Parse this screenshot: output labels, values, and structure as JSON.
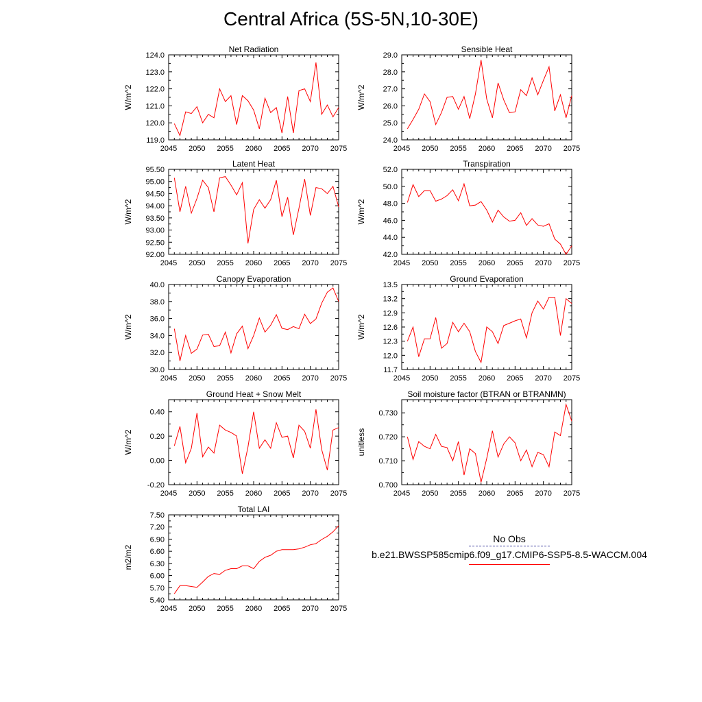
{
  "title": "Central Africa (5S-5N,10-30E)",
  "legend": {
    "obs_label": "No Obs",
    "obs_color": "#3c3c9c",
    "case_label": "b.e21.BWSSP585cmip6.f09_g17.CMIP6-SSP5-8.5-WACCM.004",
    "case_color": "#ff0000"
  },
  "chart_data": [
    {
      "type": "line",
      "title": "Net Radiation",
      "ylabel": "W/m^2",
      "xlim": [
        2045,
        2075
      ],
      "ylim": [
        119.0,
        124.0
      ],
      "xticks": [
        "2045",
        "2050",
        "2055",
        "2060",
        "2065",
        "2070",
        "2075"
      ],
      "yticks": [
        "119.0",
        "120.0",
        "121.0",
        "122.0",
        "123.0",
        "124.0"
      ],
      "x_start": 2046,
      "values": [
        119.95,
        119.25,
        120.65,
        120.55,
        120.95,
        120.0,
        120.5,
        120.3,
        122.0,
        121.25,
        121.6,
        119.9,
        121.6,
        121.3,
        120.75,
        119.65,
        121.45,
        120.6,
        120.9,
        119.4,
        121.55,
        119.4,
        121.9,
        122.0,
        121.25,
        123.55,
        120.5,
        121.05,
        120.35,
        120.9
      ]
    },
    {
      "type": "line",
      "title": "Sensible Heat",
      "ylabel": "W/m^2",
      "xlim": [
        2045,
        2075
      ],
      "ylim": [
        24.0,
        29.0
      ],
      "xticks": [
        "2045",
        "2050",
        "2055",
        "2060",
        "2065",
        "2070",
        "2075"
      ],
      "yticks": [
        "24.0",
        "25.0",
        "26.0",
        "27.0",
        "28.0",
        "29.0"
      ],
      "x_start": 2046,
      "values": [
        24.65,
        25.2,
        25.8,
        26.7,
        26.25,
        24.9,
        25.6,
        26.5,
        26.55,
        25.8,
        26.55,
        25.25,
        26.7,
        28.7,
        26.4,
        25.3,
        27.35,
        26.35,
        25.6,
        25.65,
        26.95,
        26.6,
        27.65,
        26.65,
        27.5,
        28.3,
        25.7,
        26.65,
        25.3,
        26.6
      ]
    },
    {
      "type": "line",
      "title": "Latent Heat",
      "ylabel": "W/m^2",
      "xlim": [
        2045,
        2075
      ],
      "ylim": [
        92.0,
        95.5
      ],
      "xticks": [
        "2045",
        "2050",
        "2055",
        "2060",
        "2065",
        "2070",
        "2075"
      ],
      "yticks": [
        "92.00",
        "92.50",
        "93.00",
        "93.50",
        "94.00",
        "94.50",
        "95.00",
        "95.50"
      ],
      "x_start": 2046,
      "values": [
        95.15,
        93.75,
        94.8,
        93.7,
        94.3,
        95.05,
        94.75,
        93.75,
        95.15,
        95.2,
        94.85,
        94.45,
        94.95,
        92.45,
        93.85,
        94.25,
        93.9,
        94.25,
        95.05,
        93.55,
        94.35,
        92.8,
        93.9,
        95.1,
        93.6,
        94.75,
        94.7,
        94.5,
        94.8,
        93.95
      ]
    },
    {
      "type": "line",
      "title": "Transpiration",
      "ylabel": "W/m^2",
      "xlim": [
        2045,
        2075
      ],
      "ylim": [
        42.0,
        52.0
      ],
      "xticks": [
        "2045",
        "2050",
        "2055",
        "2060",
        "2065",
        "2070",
        "2075"
      ],
      "yticks": [
        "42.0",
        "44.0",
        "46.0",
        "48.0",
        "50.0",
        "52.0"
      ],
      "x_start": 2046,
      "values": [
        48.1,
        50.2,
        48.8,
        49.5,
        49.5,
        48.25,
        48.5,
        48.9,
        49.6,
        48.3,
        50.3,
        47.7,
        47.8,
        48.2,
        47.2,
        45.8,
        47.2,
        46.4,
        45.9,
        46.0,
        46.9,
        45.4,
        46.2,
        45.45,
        45.3,
        45.6,
        43.8,
        43.2,
        41.95,
        43.0
      ]
    },
    {
      "type": "line",
      "title": "Canopy Evaporation",
      "ylabel": "W/m^2",
      "xlim": [
        2045,
        2075
      ],
      "ylim": [
        30.0,
        40.0
      ],
      "xticks": [
        "2045",
        "2050",
        "2055",
        "2060",
        "2065",
        "2070",
        "2075"
      ],
      "yticks": [
        "30.0",
        "32.0",
        "34.0",
        "36.0",
        "38.0",
        "40.0"
      ],
      "x_start": 2046,
      "values": [
        34.8,
        31.0,
        34.0,
        31.9,
        32.4,
        34.05,
        34.15,
        32.7,
        32.8,
        34.4,
        31.95,
        34.2,
        35.1,
        32.45,
        34.0,
        36.05,
        34.4,
        35.2,
        36.45,
        34.85,
        34.7,
        35.05,
        34.8,
        36.5,
        35.4,
        35.95,
        37.8,
        39.1,
        39.6,
        38.0
      ]
    },
    {
      "type": "line",
      "title": "Ground Evaporation",
      "ylabel": "W/m^2",
      "xlim": [
        2045,
        2075
      ],
      "ylim": [
        11.7,
        13.5
      ],
      "xticks": [
        "2045",
        "2050",
        "2055",
        "2060",
        "2065",
        "2070",
        "2075"
      ],
      "yticks": [
        "11.7",
        "12.0",
        "12.3",
        "12.6",
        "12.9",
        "13.2",
        "13.5"
      ],
      "x_start": 2046,
      "values": [
        12.3,
        12.6,
        11.97,
        12.35,
        12.35,
        12.8,
        12.15,
        12.25,
        12.7,
        12.5,
        12.68,
        12.5,
        12.08,
        11.85,
        12.6,
        12.5,
        12.25,
        12.63,
        12.68,
        12.73,
        12.77,
        12.37,
        12.9,
        13.15,
        12.98,
        13.23,
        13.23,
        12.42,
        13.2,
        13.1
      ]
    },
    {
      "type": "line",
      "title": "Ground Heat + Snow Melt",
      "ylabel": "W/m^2",
      "xlim": [
        2045,
        2075
      ],
      "ylim": [
        -0.2,
        0.5
      ],
      "xticks": [
        "2045",
        "2050",
        "2055",
        "2060",
        "2065",
        "2070",
        "2075"
      ],
      "yticks": [
        "-0.20",
        "0.00",
        "0.20",
        "0.40"
      ],
      "x_start": 2046,
      "values": [
        0.12,
        0.28,
        -0.02,
        0.1,
        0.39,
        0.03,
        0.11,
        0.06,
        0.29,
        0.25,
        0.23,
        0.2,
        -0.11,
        0.11,
        0.4,
        0.1,
        0.17,
        0.1,
        0.31,
        0.19,
        0.2,
        0.02,
        0.29,
        0.24,
        0.1,
        0.42,
        0.09,
        -0.08,
        0.25,
        0.27
      ]
    },
    {
      "type": "line",
      "title": "Soil moisture factor (BTRAN or BTRANMN)",
      "ylabel": "unitless",
      "xlim": [
        2045,
        2075
      ],
      "ylim": [
        0.7,
        0.7355
      ],
      "xticks": [
        "2045",
        "2050",
        "2055",
        "2060",
        "2065",
        "2070",
        "2075"
      ],
      "yticks": [
        "0.700",
        "0.710",
        "0.720",
        "0.730"
      ],
      "x_start": 2046,
      "values": [
        0.72,
        0.7105,
        0.718,
        0.716,
        0.715,
        0.721,
        0.716,
        0.7155,
        0.71,
        0.718,
        0.704,
        0.715,
        0.713,
        0.701,
        0.711,
        0.7225,
        0.7115,
        0.717,
        0.72,
        0.7175,
        0.71,
        0.7145,
        0.7075,
        0.7135,
        0.7125,
        0.7075,
        0.722,
        0.7205,
        0.7335,
        0.7265
      ]
    },
    {
      "type": "line",
      "title": "Total LAI",
      "ylabel": "m2/m2",
      "xlim": [
        2045,
        2075
      ],
      "ylim": [
        5.4,
        7.5
      ],
      "xticks": [
        "2045",
        "2050",
        "2055",
        "2060",
        "2065",
        "2070",
        "2075"
      ],
      "yticks": [
        "5.40",
        "5.70",
        "6.00",
        "6.30",
        "6.60",
        "6.90",
        "7.20",
        "7.50"
      ],
      "x_start": 2046,
      "values": [
        5.55,
        5.75,
        5.75,
        5.73,
        5.71,
        5.84,
        5.98,
        6.05,
        6.03,
        6.13,
        6.17,
        6.17,
        6.24,
        6.24,
        6.17,
        6.35,
        6.45,
        6.5,
        6.6,
        6.64,
        6.64,
        6.64,
        6.66,
        6.7,
        6.76,
        6.79,
        6.89,
        6.97,
        7.08,
        7.23
      ]
    }
  ]
}
